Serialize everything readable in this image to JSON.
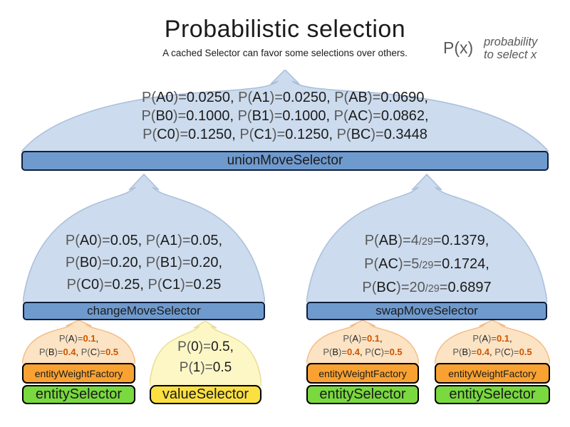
{
  "title": "Probabilistic selection",
  "subtitle": "A cached Selector can favor some selections over others.",
  "legend": {
    "symbol": "P(x)",
    "note_line1": "probability",
    "note_line2": "to select x"
  },
  "colors": {
    "selector_bar_blue": "#6f9ace",
    "dome_light_blue": "#ccdbed",
    "entity_weight_orange": "#f9a232",
    "entity_selector_green": "#79d93f",
    "value_selector_yellow": "#fbe042",
    "weight_value_orange": "#cc5500",
    "probability_gray": "#595959"
  },
  "union_selector": {
    "label": "unionMoveSelector",
    "lines": [
      [
        {
          "t": "P(",
          "c": "g"
        },
        {
          "t": "A0"
        },
        {
          "t": ")=",
          "c": "g"
        },
        {
          "t": "0.0250, "
        },
        {
          "t": "P(",
          "c": "g"
        },
        {
          "t": "A1"
        },
        {
          "t": ")=",
          "c": "g"
        },
        {
          "t": "0.0250, "
        },
        {
          "t": "P(",
          "c": "g"
        },
        {
          "t": "AB"
        },
        {
          "t": ")=",
          "c": "g"
        },
        {
          "t": "0.0690,"
        }
      ],
      [
        {
          "t": "P(",
          "c": "g"
        },
        {
          "t": "B0"
        },
        {
          "t": ")=",
          "c": "g"
        },
        {
          "t": "0.1000, "
        },
        {
          "t": "P(",
          "c": "g"
        },
        {
          "t": "B1"
        },
        {
          "t": ")=",
          "c": "g"
        },
        {
          "t": "0.1000, "
        },
        {
          "t": "P(",
          "c": "g"
        },
        {
          "t": "AC"
        },
        {
          "t": ")=",
          "c": "g"
        },
        {
          "t": "0.0862,"
        }
      ],
      [
        {
          "t": "P(",
          "c": "g"
        },
        {
          "t": "C0"
        },
        {
          "t": ")=",
          "c": "g"
        },
        {
          "t": "0.1250, "
        },
        {
          "t": "P(",
          "c": "g"
        },
        {
          "t": "C1"
        },
        {
          "t": ")=",
          "c": "g"
        },
        {
          "t": "0.1250, "
        },
        {
          "t": "P(",
          "c": "g"
        },
        {
          "t": "BC"
        },
        {
          "t": ")=",
          "c": "g"
        },
        {
          "t": "0.3448"
        }
      ]
    ]
  },
  "change_selector": {
    "label": "changeMoveSelector",
    "lines": [
      [
        {
          "t": "P(",
          "c": "g"
        },
        {
          "t": "A0"
        },
        {
          "t": ")=",
          "c": "g"
        },
        {
          "t": "0.05, "
        },
        {
          "t": "P(",
          "c": "g"
        },
        {
          "t": "A1"
        },
        {
          "t": ")=",
          "c": "g"
        },
        {
          "t": "0.05,"
        }
      ],
      [
        {
          "t": "P(",
          "c": "g"
        },
        {
          "t": "B0"
        },
        {
          "t": ")=",
          "c": "g"
        },
        {
          "t": "0.20, "
        },
        {
          "t": "P(",
          "c": "g"
        },
        {
          "t": "B1"
        },
        {
          "t": ")=",
          "c": "g"
        },
        {
          "t": "0.20,"
        }
      ],
      [
        {
          "t": "P(",
          "c": "g"
        },
        {
          "t": "C0"
        },
        {
          "t": ")=",
          "c": "g"
        },
        {
          "t": "0.25, "
        },
        {
          "t": "P(",
          "c": "g"
        },
        {
          "t": "C1"
        },
        {
          "t": ")=",
          "c": "g"
        },
        {
          "t": "0.25"
        }
      ]
    ]
  },
  "swap_selector": {
    "label": "swapMoveSelector",
    "lines": [
      [
        {
          "t": "P(",
          "c": "g"
        },
        {
          "t": "AB"
        },
        {
          "t": ")=",
          "c": "g"
        },
        {
          "t": "4",
          "c": "g"
        },
        {
          "t": "/29",
          "c": "f"
        },
        {
          "t": "=",
          "c": "g"
        },
        {
          "t": "0.1379,"
        }
      ],
      [
        {
          "t": "P(",
          "c": "g"
        },
        {
          "t": "AC"
        },
        {
          "t": ")=",
          "c": "g"
        },
        {
          "t": "5",
          "c": "g"
        },
        {
          "t": "/29",
          "c": "f"
        },
        {
          "t": "=",
          "c": "g"
        },
        {
          "t": "0.1724,"
        }
      ],
      [
        {
          "t": "P(",
          "c": "g"
        },
        {
          "t": "BC"
        },
        {
          "t": ")=",
          "c": "g"
        },
        {
          "t": "20",
          "c": "g"
        },
        {
          "t": "/29",
          "c": "f"
        },
        {
          "t": "=",
          "c": "g"
        },
        {
          "t": "0.6897"
        }
      ]
    ]
  },
  "entity_weight_factory": {
    "label": "entityWeightFactory",
    "lines": [
      [
        {
          "t": "P(",
          "c": "g"
        },
        {
          "t": "A"
        },
        {
          "t": ")=",
          "c": "g"
        },
        {
          "t": "0.1",
          "c": "o"
        },
        {
          "t": ","
        }
      ],
      [
        {
          "t": "P(",
          "c": "g"
        },
        {
          "t": "B"
        },
        {
          "t": ")=",
          "c": "g"
        },
        {
          "t": "0.4",
          "c": "o"
        },
        {
          "t": ", "
        },
        {
          "t": "P(",
          "c": "g"
        },
        {
          "t": "C"
        },
        {
          "t": ")=",
          "c": "g"
        },
        {
          "t": "0.5",
          "c": "o"
        }
      ]
    ]
  },
  "entity_selector": {
    "label": "entitySelector"
  },
  "value_selector": {
    "label": "valueSelector",
    "lines": [
      [
        {
          "t": "P(",
          "c": "g"
        },
        {
          "t": "0"
        },
        {
          "t": ")=",
          "c": "g"
        },
        {
          "t": "0.5,"
        }
      ],
      [
        {
          "t": "P(",
          "c": "g"
        },
        {
          "t": "1"
        },
        {
          "t": ")=",
          "c": "g"
        },
        {
          "t": "0.5"
        }
      ]
    ]
  }
}
